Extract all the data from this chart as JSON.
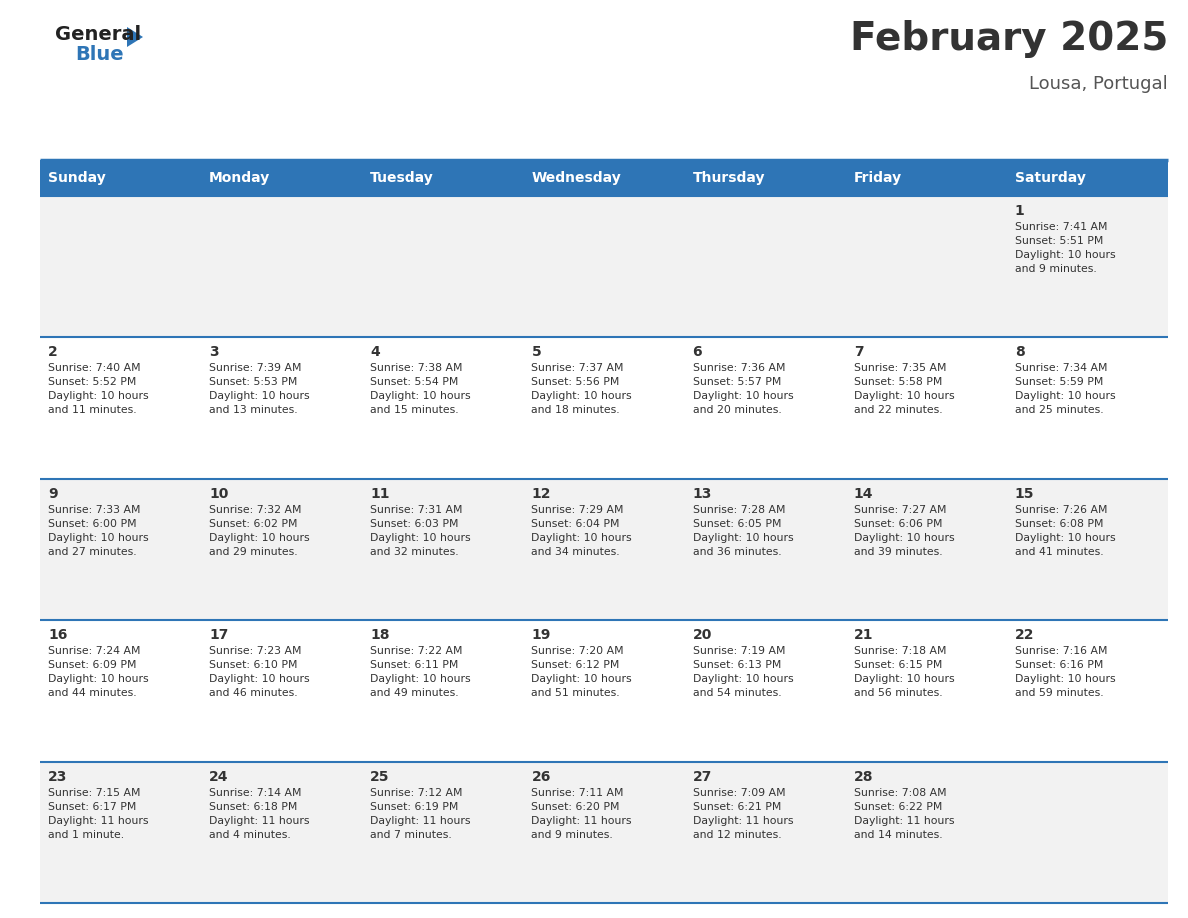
{
  "title": "February 2025",
  "subtitle": "Lousa, Portugal",
  "days_of_week": [
    "Sunday",
    "Monday",
    "Tuesday",
    "Wednesday",
    "Thursday",
    "Friday",
    "Saturday"
  ],
  "header_bg": "#2E75B6",
  "header_text_color": "#FFFFFF",
  "cell_bg_light": "#F2F2F2",
  "cell_bg_white": "#FFFFFF",
  "cell_text_color": "#333333",
  "border_color": "#2E75B6",
  "title_color": "#333333",
  "subtitle_color": "#555555",
  "logo_general_color": "#222222",
  "logo_blue_color": "#2E75B6",
  "fig_width": 11.88,
  "fig_height": 9.18,
  "dpi": 100,
  "calendar_data": [
    {
      "day": 1,
      "col": 6,
      "row": 0,
      "sunrise": "7:41 AM",
      "sunset": "5:51 PM",
      "daylight_hours": 10,
      "daylight_minutes": 9
    },
    {
      "day": 2,
      "col": 0,
      "row": 1,
      "sunrise": "7:40 AM",
      "sunset": "5:52 PM",
      "daylight_hours": 10,
      "daylight_minutes": 11
    },
    {
      "day": 3,
      "col": 1,
      "row": 1,
      "sunrise": "7:39 AM",
      "sunset": "5:53 PM",
      "daylight_hours": 10,
      "daylight_minutes": 13
    },
    {
      "day": 4,
      "col": 2,
      "row": 1,
      "sunrise": "7:38 AM",
      "sunset": "5:54 PM",
      "daylight_hours": 10,
      "daylight_minutes": 15
    },
    {
      "day": 5,
      "col": 3,
      "row": 1,
      "sunrise": "7:37 AM",
      "sunset": "5:56 PM",
      "daylight_hours": 10,
      "daylight_minutes": 18
    },
    {
      "day": 6,
      "col": 4,
      "row": 1,
      "sunrise": "7:36 AM",
      "sunset": "5:57 PM",
      "daylight_hours": 10,
      "daylight_minutes": 20
    },
    {
      "day": 7,
      "col": 5,
      "row": 1,
      "sunrise": "7:35 AM",
      "sunset": "5:58 PM",
      "daylight_hours": 10,
      "daylight_minutes": 22
    },
    {
      "day": 8,
      "col": 6,
      "row": 1,
      "sunrise": "7:34 AM",
      "sunset": "5:59 PM",
      "daylight_hours": 10,
      "daylight_minutes": 25
    },
    {
      "day": 9,
      "col": 0,
      "row": 2,
      "sunrise": "7:33 AM",
      "sunset": "6:00 PM",
      "daylight_hours": 10,
      "daylight_minutes": 27
    },
    {
      "day": 10,
      "col": 1,
      "row": 2,
      "sunrise": "7:32 AM",
      "sunset": "6:02 PM",
      "daylight_hours": 10,
      "daylight_minutes": 29
    },
    {
      "day": 11,
      "col": 2,
      "row": 2,
      "sunrise": "7:31 AM",
      "sunset": "6:03 PM",
      "daylight_hours": 10,
      "daylight_minutes": 32
    },
    {
      "day": 12,
      "col": 3,
      "row": 2,
      "sunrise": "7:29 AM",
      "sunset": "6:04 PM",
      "daylight_hours": 10,
      "daylight_minutes": 34
    },
    {
      "day": 13,
      "col": 4,
      "row": 2,
      "sunrise": "7:28 AM",
      "sunset": "6:05 PM",
      "daylight_hours": 10,
      "daylight_minutes": 36
    },
    {
      "day": 14,
      "col": 5,
      "row": 2,
      "sunrise": "7:27 AM",
      "sunset": "6:06 PM",
      "daylight_hours": 10,
      "daylight_minutes": 39
    },
    {
      "day": 15,
      "col": 6,
      "row": 2,
      "sunrise": "7:26 AM",
      "sunset": "6:08 PM",
      "daylight_hours": 10,
      "daylight_minutes": 41
    },
    {
      "day": 16,
      "col": 0,
      "row": 3,
      "sunrise": "7:24 AM",
      "sunset": "6:09 PM",
      "daylight_hours": 10,
      "daylight_minutes": 44
    },
    {
      "day": 17,
      "col": 1,
      "row": 3,
      "sunrise": "7:23 AM",
      "sunset": "6:10 PM",
      "daylight_hours": 10,
      "daylight_minutes": 46
    },
    {
      "day": 18,
      "col": 2,
      "row": 3,
      "sunrise": "7:22 AM",
      "sunset": "6:11 PM",
      "daylight_hours": 10,
      "daylight_minutes": 49
    },
    {
      "day": 19,
      "col": 3,
      "row": 3,
      "sunrise": "7:20 AM",
      "sunset": "6:12 PM",
      "daylight_hours": 10,
      "daylight_minutes": 51
    },
    {
      "day": 20,
      "col": 4,
      "row": 3,
      "sunrise": "7:19 AM",
      "sunset": "6:13 PM",
      "daylight_hours": 10,
      "daylight_minutes": 54
    },
    {
      "day": 21,
      "col": 5,
      "row": 3,
      "sunrise": "7:18 AM",
      "sunset": "6:15 PM",
      "daylight_hours": 10,
      "daylight_minutes": 56
    },
    {
      "day": 22,
      "col": 6,
      "row": 3,
      "sunrise": "7:16 AM",
      "sunset": "6:16 PM",
      "daylight_hours": 10,
      "daylight_minutes": 59
    },
    {
      "day": 23,
      "col": 0,
      "row": 4,
      "sunrise": "7:15 AM",
      "sunset": "6:17 PM",
      "daylight_hours": 11,
      "daylight_minutes": 1
    },
    {
      "day": 24,
      "col": 1,
      "row": 4,
      "sunrise": "7:14 AM",
      "sunset": "6:18 PM",
      "daylight_hours": 11,
      "daylight_minutes": 4
    },
    {
      "day": 25,
      "col": 2,
      "row": 4,
      "sunrise": "7:12 AM",
      "sunset": "6:19 PM",
      "daylight_hours": 11,
      "daylight_minutes": 7
    },
    {
      "day": 26,
      "col": 3,
      "row": 4,
      "sunrise": "7:11 AM",
      "sunset": "6:20 PM",
      "daylight_hours": 11,
      "daylight_minutes": 9
    },
    {
      "day": 27,
      "col": 4,
      "row": 4,
      "sunrise": "7:09 AM",
      "sunset": "6:21 PM",
      "daylight_hours": 11,
      "daylight_minutes": 12
    },
    {
      "day": 28,
      "col": 5,
      "row": 4,
      "sunrise": "7:08 AM",
      "sunset": "6:22 PM",
      "daylight_hours": 11,
      "daylight_minutes": 14
    }
  ]
}
